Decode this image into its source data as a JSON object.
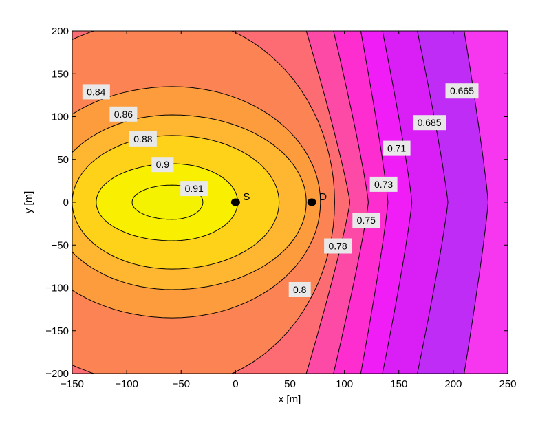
{
  "chart_data": {
    "type": "contour",
    "xlabel": "x [m]",
    "ylabel": "y [m]",
    "xlim": [
      -150,
      250
    ],
    "ylim": [
      -200,
      200
    ],
    "xticks": [
      -150,
      -100,
      -50,
      0,
      50,
      100,
      150,
      200,
      250
    ],
    "yticks": [
      -200,
      -150,
      -100,
      -50,
      0,
      50,
      100,
      150,
      200
    ],
    "xtick_labels": [
      "−150",
      "−100",
      "−50",
      "0",
      "50",
      "100",
      "150",
      "200",
      "250"
    ],
    "ytick_labels": [
      "−200",
      "−150",
      "−100",
      "−50",
      "0",
      "50",
      "100",
      "150",
      "200"
    ],
    "grid": false,
    "peak": {
      "x": -58,
      "y": 0,
      "value": 0.915
    },
    "levels": [
      {
        "value": 0.91,
        "label": "0.91",
        "fill": "#f4f200",
        "kind": "ellipse",
        "xl": -95,
        "xr": -30,
        "ry": 20
      },
      {
        "value": 0.9,
        "label": "0.9",
        "fill": "#f8f000",
        "kind": "ellipse",
        "xl": -128,
        "xr": 2,
        "ry": 45
      },
      {
        "value": 0.88,
        "label": "0.88",
        "fill": "#ffd21a",
        "kind": "ellipse",
        "xl": -150,
        "xr": 40,
        "ry": 78
      },
      {
        "value": 0.86,
        "label": "0.86",
        "fill": "#ffb630",
        "kind": "ellipse",
        "xl": -170,
        "xr": 65,
        "ry": 102
      },
      {
        "value": 0.84,
        "label": "0.84",
        "fill": "#fd9c3c",
        "kind": "ellipse",
        "xl": -200,
        "xr": 78,
        "ry": 135
      },
      {
        "value": 0.8,
        "label": "0.8",
        "fill": "#fc8353",
        "kind": "ellipse",
        "xl": -255,
        "xr": 91,
        "ry": 215
      },
      {
        "value": 0.78,
        "label": "0.78",
        "fill": "#fd6c72",
        "kind": "front",
        "xs": 105,
        "xt": 65
      },
      {
        "value": 0.75,
        "label": "0.75",
        "fill": "#fd4aa6",
        "kind": "front",
        "xs": 122,
        "xt": 90
      },
      {
        "value": 0.73,
        "label": "0.73",
        "fill": "#fd2dd0",
        "kind": "front",
        "xs": 140,
        "xt": 115
      },
      {
        "value": 0.71,
        "label": "0.71",
        "fill": "#f01df6",
        "kind": "front",
        "xs": 162,
        "xt": 135
      },
      {
        "value": 0.685,
        "label": "0.685",
        "fill": "#d91ff6",
        "kind": "front",
        "xs": 195,
        "xt": 167
      },
      {
        "value": 0.665,
        "label": "0.665",
        "fill": "#bf2cf6",
        "kind": "front",
        "xs": 232,
        "xt": 210
      }
    ],
    "background_fill": "#f736ef",
    "contour_labels": [
      {
        "label": "0.84",
        "x": -128,
        "y": 129
      },
      {
        "label": "0.86",
        "x": -103,
        "y": 103
      },
      {
        "label": "0.88",
        "x": -85,
        "y": 74
      },
      {
        "label": "0.9",
        "x": -67,
        "y": 44
      },
      {
        "label": "0.91",
        "x": -38,
        "y": 16
      },
      {
        "label": "0.8",
        "x": 59,
        "y": -102
      },
      {
        "label": "0.78",
        "x": 94,
        "y": -51
      },
      {
        "label": "0.75",
        "x": 120,
        "y": -21
      },
      {
        "label": "0.73",
        "x": 136,
        "y": 21
      },
      {
        "label": "0.71",
        "x": 148,
        "y": 63
      },
      {
        "label": "0.685",
        "x": 178,
        "y": 93
      },
      {
        "label": "0.665",
        "x": 208,
        "y": 130
      }
    ],
    "markers": [
      {
        "label": "S",
        "x": 0,
        "y": 0
      },
      {
        "label": "D",
        "x": 70,
        "y": 0
      }
    ]
  }
}
